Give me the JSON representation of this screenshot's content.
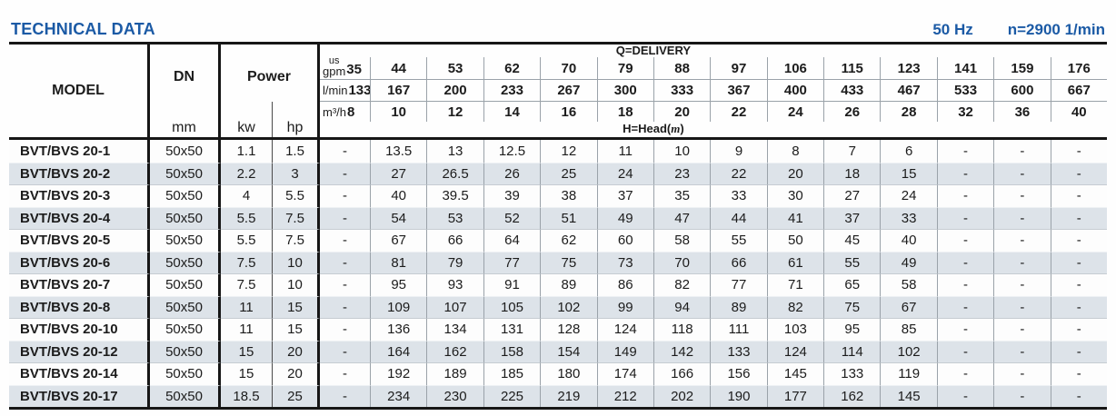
{
  "page": {
    "title": "TECHNICAL DATA",
    "frequency": "50 Hz",
    "speed": "n=2900 1/min"
  },
  "colors": {
    "accent_blue": "#1b5aa5",
    "row_shade": "#dde3e9",
    "border_dark": "#161616",
    "divider_gray": "#9aa2a9"
  },
  "table": {
    "model_header": "MODEL",
    "dn_header": "DN",
    "dn_unit": "mm",
    "power_header": "Power",
    "power_units": [
      "kw",
      "hp"
    ],
    "delivery_label": "Q=DELIVERY",
    "head_label": {
      "pre": "H=Head(",
      "m": "m",
      "post": ")"
    },
    "units": {
      "us": "us",
      "gpm": "gpm",
      "lmin": "l/min",
      "m3h": "m³/h"
    },
    "delivery_gpm": [
      "35",
      "44",
      "53",
      "62",
      "70",
      "79",
      "88",
      "97",
      "106",
      "115",
      "123",
      "141",
      "159",
      "176"
    ],
    "delivery_lmin": [
      "133",
      "167",
      "200",
      "233",
      "267",
      "300",
      "333",
      "367",
      "400",
      "433",
      "467",
      "533",
      "600",
      "667"
    ],
    "delivery_m3h": [
      "8",
      "10",
      "12",
      "14",
      "16",
      "18",
      "20",
      "22",
      "24",
      "26",
      "28",
      "32",
      "36",
      "40"
    ],
    "rows": [
      {
        "model": "BVT/BVS 20-1",
        "dn": "50x50",
        "kw": "1.1",
        "hp": "1.5",
        "head": [
          "-",
          "13.5",
          "13",
          "12.5",
          "12",
          "11",
          "10",
          "9",
          "8",
          "7",
          "6",
          "-",
          "-",
          "-"
        ]
      },
      {
        "model": "BVT/BVS 20-2",
        "dn": "50x50",
        "kw": "2.2",
        "hp": "3",
        "head": [
          "-",
          "27",
          "26.5",
          "26",
          "25",
          "24",
          "23",
          "22",
          "20",
          "18",
          "15",
          "-",
          "-",
          "-"
        ]
      },
      {
        "model": "BVT/BVS 20-3",
        "dn": "50x50",
        "kw": "4",
        "hp": "5.5",
        "head": [
          "-",
          "40",
          "39.5",
          "39",
          "38",
          "37",
          "35",
          "33",
          "30",
          "27",
          "24",
          "-",
          "-",
          "-"
        ]
      },
      {
        "model": "BVT/BVS 20-4",
        "dn": "50x50",
        "kw": "5.5",
        "hp": "7.5",
        "head": [
          "-",
          "54",
          "53",
          "52",
          "51",
          "49",
          "47",
          "44",
          "41",
          "37",
          "33",
          "-",
          "-",
          "-"
        ]
      },
      {
        "model": "BVT/BVS 20-5",
        "dn": "50x50",
        "kw": "5.5",
        "hp": "7.5",
        "head": [
          "-",
          "67",
          "66",
          "64",
          "62",
          "60",
          "58",
          "55",
          "50",
          "45",
          "40",
          "-",
          "-",
          "-"
        ]
      },
      {
        "model": "BVT/BVS 20-6",
        "dn": "50x50",
        "kw": "7.5",
        "hp": "10",
        "head": [
          "-",
          "81",
          "79",
          "77",
          "75",
          "73",
          "70",
          "66",
          "61",
          "55",
          "49",
          "-",
          "-",
          "-"
        ]
      },
      {
        "model": "BVT/BVS 20-7",
        "dn": "50x50",
        "kw": "7.5",
        "hp": "10",
        "head": [
          "-",
          "95",
          "93",
          "91",
          "89",
          "86",
          "82",
          "77",
          "71",
          "65",
          "58",
          "-",
          "-",
          "-"
        ]
      },
      {
        "model": "BVT/BVS 20-8",
        "dn": "50x50",
        "kw": "11",
        "hp": "15",
        "head": [
          "-",
          "109",
          "107",
          "105",
          "102",
          "99",
          "94",
          "89",
          "82",
          "75",
          "67",
          "-",
          "-",
          "-"
        ]
      },
      {
        "model": "BVT/BVS 20-10",
        "dn": "50x50",
        "kw": "11",
        "hp": "15",
        "head": [
          "-",
          "136",
          "134",
          "131",
          "128",
          "124",
          "118",
          "111",
          "103",
          "95",
          "85",
          "-",
          "-",
          "-"
        ]
      },
      {
        "model": "BVT/BVS 20-12",
        "dn": "50x50",
        "kw": "15",
        "hp": "20",
        "head": [
          "-",
          "164",
          "162",
          "158",
          "154",
          "149",
          "142",
          "133",
          "124",
          "114",
          "102",
          "-",
          "-",
          "-"
        ]
      },
      {
        "model": "BVT/BVS 20-14",
        "dn": "50x50",
        "kw": "15",
        "hp": "20",
        "head": [
          "-",
          "192",
          "189",
          "185",
          "180",
          "174",
          "166",
          "156",
          "145",
          "133",
          "119",
          "-",
          "-",
          "-"
        ]
      },
      {
        "model": "BVT/BVS 20-17",
        "dn": "50x50",
        "kw": "18.5",
        "hp": "25",
        "head": [
          "-",
          "234",
          "230",
          "225",
          "219",
          "212",
          "202",
          "190",
          "177",
          "162",
          "145",
          "-",
          "-",
          "-"
        ]
      }
    ]
  }
}
